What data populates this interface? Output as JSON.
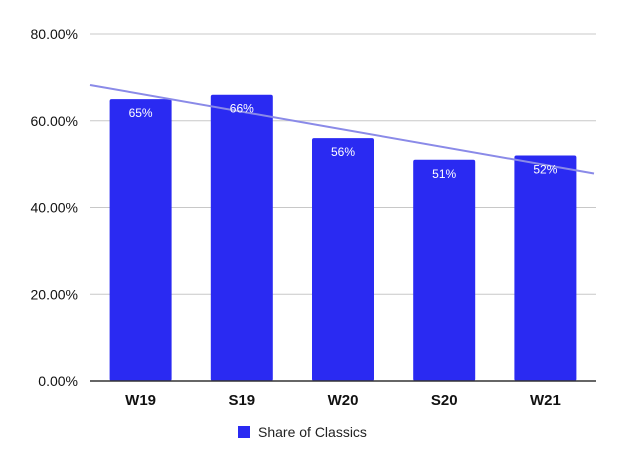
{
  "chart_data": {
    "type": "bar",
    "categories": [
      "W19",
      "S19",
      "W20",
      "S20",
      "W21"
    ],
    "series": [
      {
        "name": "Share of Classics",
        "values": [
          65,
          66,
          56,
          51,
          52
        ],
        "data_labels": [
          "65%",
          "66%",
          "56%",
          "51%",
          "52%"
        ],
        "color": "#2a2af2"
      }
    ],
    "ylim": [
      0,
      80
    ],
    "y_ticks": [
      0,
      20,
      40,
      60,
      80
    ],
    "y_tick_labels": [
      "0.00%",
      "20.00%",
      "40.00%",
      "60.00%",
      "80.00%"
    ],
    "trendline": {
      "type": "linear",
      "color": "#8a8ae8"
    },
    "grid": true,
    "legend": "bottom",
    "title": "",
    "xlabel": "",
    "ylabel": ""
  }
}
